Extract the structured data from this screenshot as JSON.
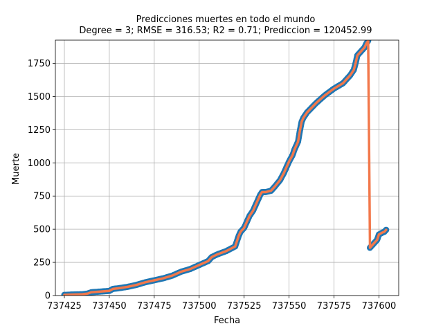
{
  "chart_data": {
    "type": "scatter",
    "title": "Predicciones muertes en todo el mundo",
    "subtitle": "Degree = 3; RMSE = 316.53; R2 = 0.71; Prediccion = 120452.99",
    "xlabel": "Fecha",
    "ylabel": "Muerte",
    "xlim": [
      737420,
      737611
    ],
    "ylim": [
      0,
      1925
    ],
    "x_ticks": [
      737425,
      737450,
      737475,
      737500,
      737525,
      737550,
      737575,
      737600
    ],
    "y_ticks": [
      0,
      250,
      500,
      750,
      1000,
      1250,
      1500,
      1750
    ],
    "grid": true,
    "colors": {
      "points": "#1f77b4",
      "line": "#f2784b",
      "grid": "#b0b0b0"
    },
    "series": [
      {
        "kind": "scatter",
        "x": [
          737425,
          737430,
          737435,
          737438,
          737440,
          737445,
          737450,
          737452,
          737455,
          737460,
          737465,
          737470,
          737475,
          737480,
          737485,
          737490,
          737495,
          737500,
          737505,
          737507,
          737510,
          737515,
          737520,
          737521,
          737522,
          737523,
          737525,
          737527,
          737528,
          737530,
          737532,
          737534,
          737535,
          737537,
          737540,
          737542,
          737545,
          737547,
          737549,
          737550,
          737552,
          737553,
          737555,
          737556,
          737557,
          737558,
          737560,
          737565,
          737570,
          737575,
          737580,
          737584,
          737586,
          737587,
          737588,
          737590,
          737592,
          737593,
          737594,
          737595,
          737597,
          737599,
          737600,
          737602,
          737603,
          737604
        ],
        "y": [
          5,
          8,
          10,
          15,
          25,
          30,
          35,
          50,
          55,
          65,
          80,
          100,
          115,
          130,
          150,
          180,
          200,
          230,
          260,
          290,
          310,
          335,
          370,
          410,
          450,
          480,
          510,
          570,
          600,
          640,
          700,
          760,
          780,
          780,
          790,
          820,
          870,
          920,
          980,
          1010,
          1060,
          1100,
          1160,
          1240,
          1310,
          1340,
          1380,
          1450,
          1510,
          1560,
          1600,
          1660,
          1700,
          1750,
          1810,
          1840,
          1870,
          1900,
          1920,
          360,
          390,
          420,
          460,
          475,
          480,
          495
        ]
      },
      {
        "kind": "line",
        "x": [
          737425,
          737430,
          737435,
          737438,
          737440,
          737445,
          737450,
          737452,
          737455,
          737460,
          737465,
          737470,
          737475,
          737480,
          737485,
          737490,
          737495,
          737500,
          737505,
          737507,
          737510,
          737515,
          737520,
          737521,
          737522,
          737523,
          737525,
          737527,
          737528,
          737530,
          737532,
          737534,
          737535,
          737537,
          737540,
          737542,
          737545,
          737547,
          737549,
          737550,
          737552,
          737553,
          737555,
          737556,
          737557,
          737558,
          737560,
          737565,
          737570,
          737575,
          737580,
          737584,
          737586,
          737587,
          737588,
          737590,
          737592,
          737593,
          737594,
          737595,
          737597,
          737599,
          737600,
          737602,
          737603,
          737604
        ],
        "y": [
          5,
          8,
          10,
          15,
          25,
          30,
          35,
          50,
          55,
          65,
          80,
          100,
          115,
          130,
          150,
          180,
          200,
          230,
          260,
          290,
          310,
          335,
          370,
          410,
          450,
          480,
          510,
          570,
          600,
          640,
          700,
          760,
          780,
          780,
          790,
          820,
          870,
          920,
          980,
          1010,
          1060,
          1100,
          1160,
          1240,
          1310,
          1340,
          1380,
          1450,
          1510,
          1560,
          1600,
          1660,
          1700,
          1750,
          1810,
          1840,
          1870,
          1900,
          1920,
          360,
          390,
          420,
          460,
          475,
          480,
          495
        ]
      }
    ]
  }
}
